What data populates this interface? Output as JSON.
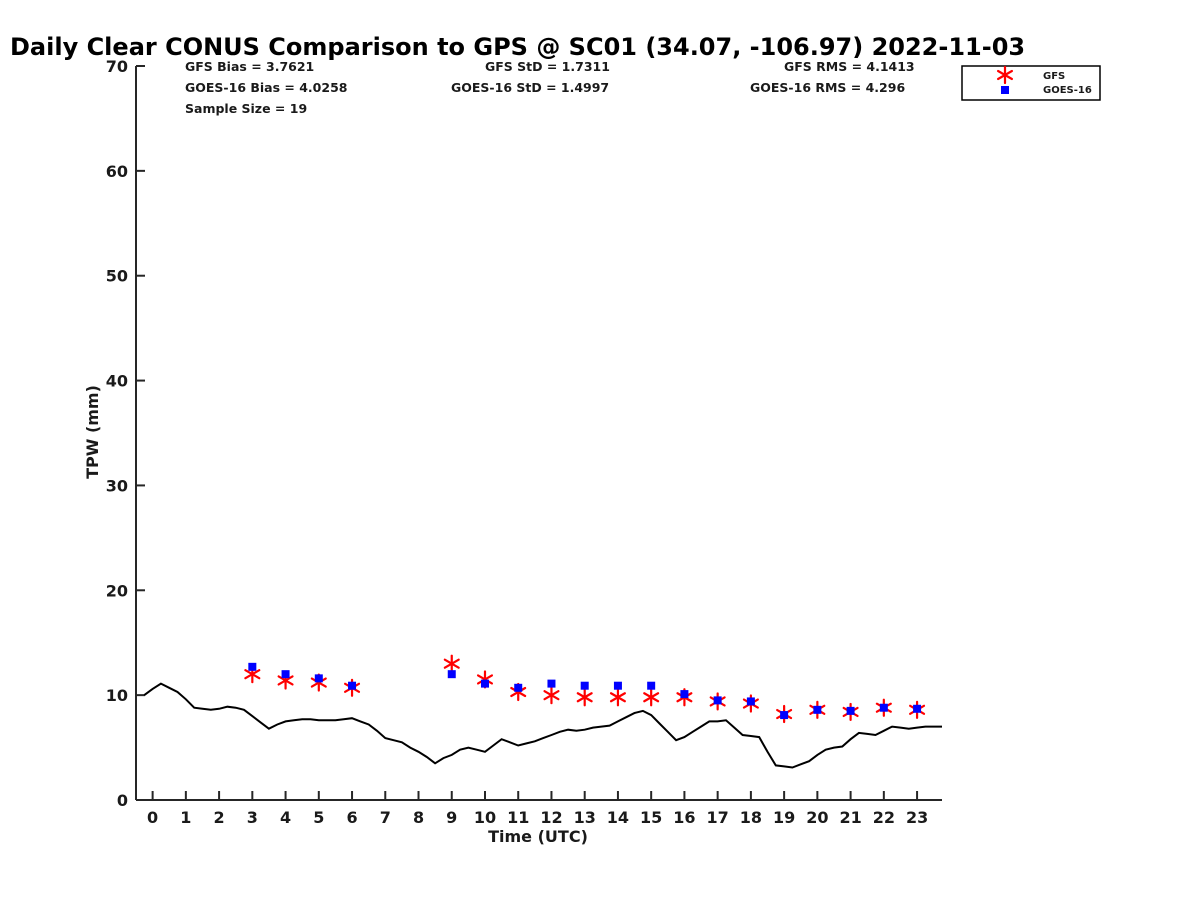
{
  "title": "Daily Clear CONUS Comparison to GPS @ SC01 (34.07, -106.97) 2022-11-03",
  "stats": {
    "gfs_bias": "GFS Bias = 3.7621",
    "goes_bias": "GOES-16 Bias = 4.0258",
    "sample_size": "Sample Size = 19",
    "gfs_std": "GFS StD = 1.7311",
    "goes_std": "GOES-16 StD = 1.4997",
    "gfs_rms": "GFS RMS = 4.1413",
    "goes_rms": "GOES-16 RMS = 4.296"
  },
  "legend": {
    "gfs": "GFS",
    "goes": "GOES-16"
  },
  "colors": {
    "gfs": "#ff0000",
    "goes": "#0000ff",
    "gps": "#000000",
    "axis": "#262626"
  },
  "chart_data": {
    "type": "scatter",
    "xlabel": "Time (UTC)",
    "ylabel": "TPW (mm)",
    "xlim": [
      -0.5,
      23.75
    ],
    "ylim": [
      0,
      70
    ],
    "xticks": [
      0,
      1,
      2,
      3,
      4,
      5,
      6,
      7,
      8,
      9,
      10,
      11,
      12,
      13,
      14,
      15,
      16,
      17,
      18,
      19,
      20,
      21,
      22,
      23
    ],
    "yticks": [
      0,
      10,
      20,
      30,
      40,
      50,
      60,
      70
    ],
    "grid": false,
    "legend_position": "outside top-right",
    "series": [
      {
        "name": "GFS",
        "marker": "asterisk",
        "x": [
          3,
          4,
          5,
          6,
          9,
          10,
          11,
          12,
          13,
          14,
          15,
          16,
          17,
          18,
          19,
          20,
          21,
          22,
          23
        ],
        "y": [
          12.0,
          11.4,
          11.2,
          10.7,
          13.0,
          11.5,
          10.3,
          10.0,
          9.8,
          9.8,
          9.8,
          9.8,
          9.4,
          9.2,
          8.2,
          8.6,
          8.4,
          8.8,
          8.6
        ]
      },
      {
        "name": "GOES-16",
        "marker": "square",
        "x": [
          3,
          4,
          5,
          6,
          9,
          10,
          11,
          12,
          13,
          14,
          15,
          16,
          17,
          18,
          19,
          20,
          21,
          22,
          23
        ],
        "y": [
          12.7,
          12.0,
          11.6,
          10.9,
          12.0,
          11.1,
          10.7,
          11.1,
          10.9,
          10.9,
          10.9,
          10.1,
          9.5,
          9.4,
          8.1,
          8.6,
          8.5,
          8.8,
          8.7
        ]
      },
      {
        "name": "",
        "marker": "line",
        "x": [
          -0.25,
          0,
          0.25,
          0.5,
          0.75,
          1,
          1.25,
          1.5,
          1.75,
          2,
          2.25,
          2.5,
          2.75,
          3,
          3.25,
          3.5,
          3.75,
          4,
          4.25,
          4.5,
          4.75,
          5,
          5.25,
          5.5,
          5.75,
          6,
          6.25,
          6.5,
          6.75,
          7,
          7.25,
          7.5,
          7.75,
          8,
          8.25,
          8.5,
          8.75,
          9,
          9.25,
          9.5,
          9.75,
          10,
          10.25,
          10.5,
          10.75,
          11,
          11.25,
          11.5,
          11.75,
          12,
          12.25,
          12.5,
          12.75,
          13,
          13.25,
          13.5,
          13.75,
          14,
          14.25,
          14.5,
          14.75,
          15,
          15.25,
          15.5,
          15.75,
          16,
          16.25,
          16.5,
          16.75,
          17,
          17.25,
          17.5,
          17.75,
          18,
          18.25,
          18.5,
          18.75,
          19,
          19.25,
          19.5,
          19.75,
          20,
          20.25,
          20.5,
          20.75,
          21,
          21.25,
          21.5,
          21.75,
          22,
          22.25,
          22.5,
          22.75,
          23,
          23.25,
          23.5,
          23.75
        ],
        "y": [
          10.0,
          10.6,
          11.1,
          10.7,
          10.3,
          9.6,
          8.8,
          8.7,
          8.6,
          8.7,
          8.9,
          8.8,
          8.6,
          8.0,
          7.4,
          6.8,
          7.2,
          7.5,
          7.6,
          7.7,
          7.7,
          7.6,
          7.6,
          7.6,
          7.7,
          7.8,
          7.5,
          7.2,
          6.6,
          5.9,
          5.7,
          5.5,
          5.0,
          4.6,
          4.1,
          3.5,
          4.0,
          4.3,
          4.8,
          5.0,
          4.8,
          4.6,
          5.2,
          5.8,
          5.5,
          5.2,
          5.4,
          5.6,
          5.9,
          6.2,
          6.5,
          6.7,
          6.6,
          6.7,
          6.9,
          7.0,
          7.1,
          7.5,
          7.9,
          8.3,
          8.5,
          8.1,
          7.3,
          6.5,
          5.7,
          6.0,
          6.5,
          7.0,
          7.5,
          7.5,
          7.6,
          6.9,
          6.2,
          6.1,
          6.0,
          4.6,
          3.3,
          3.2,
          3.1,
          3.4,
          3.7,
          4.3,
          4.8,
          5.0,
          5.1,
          5.8,
          6.4,
          6.3,
          6.2,
          6.6,
          7.0,
          6.9,
          6.8,
          6.9,
          7.0,
          7.0,
          7.0
        ]
      }
    ]
  }
}
